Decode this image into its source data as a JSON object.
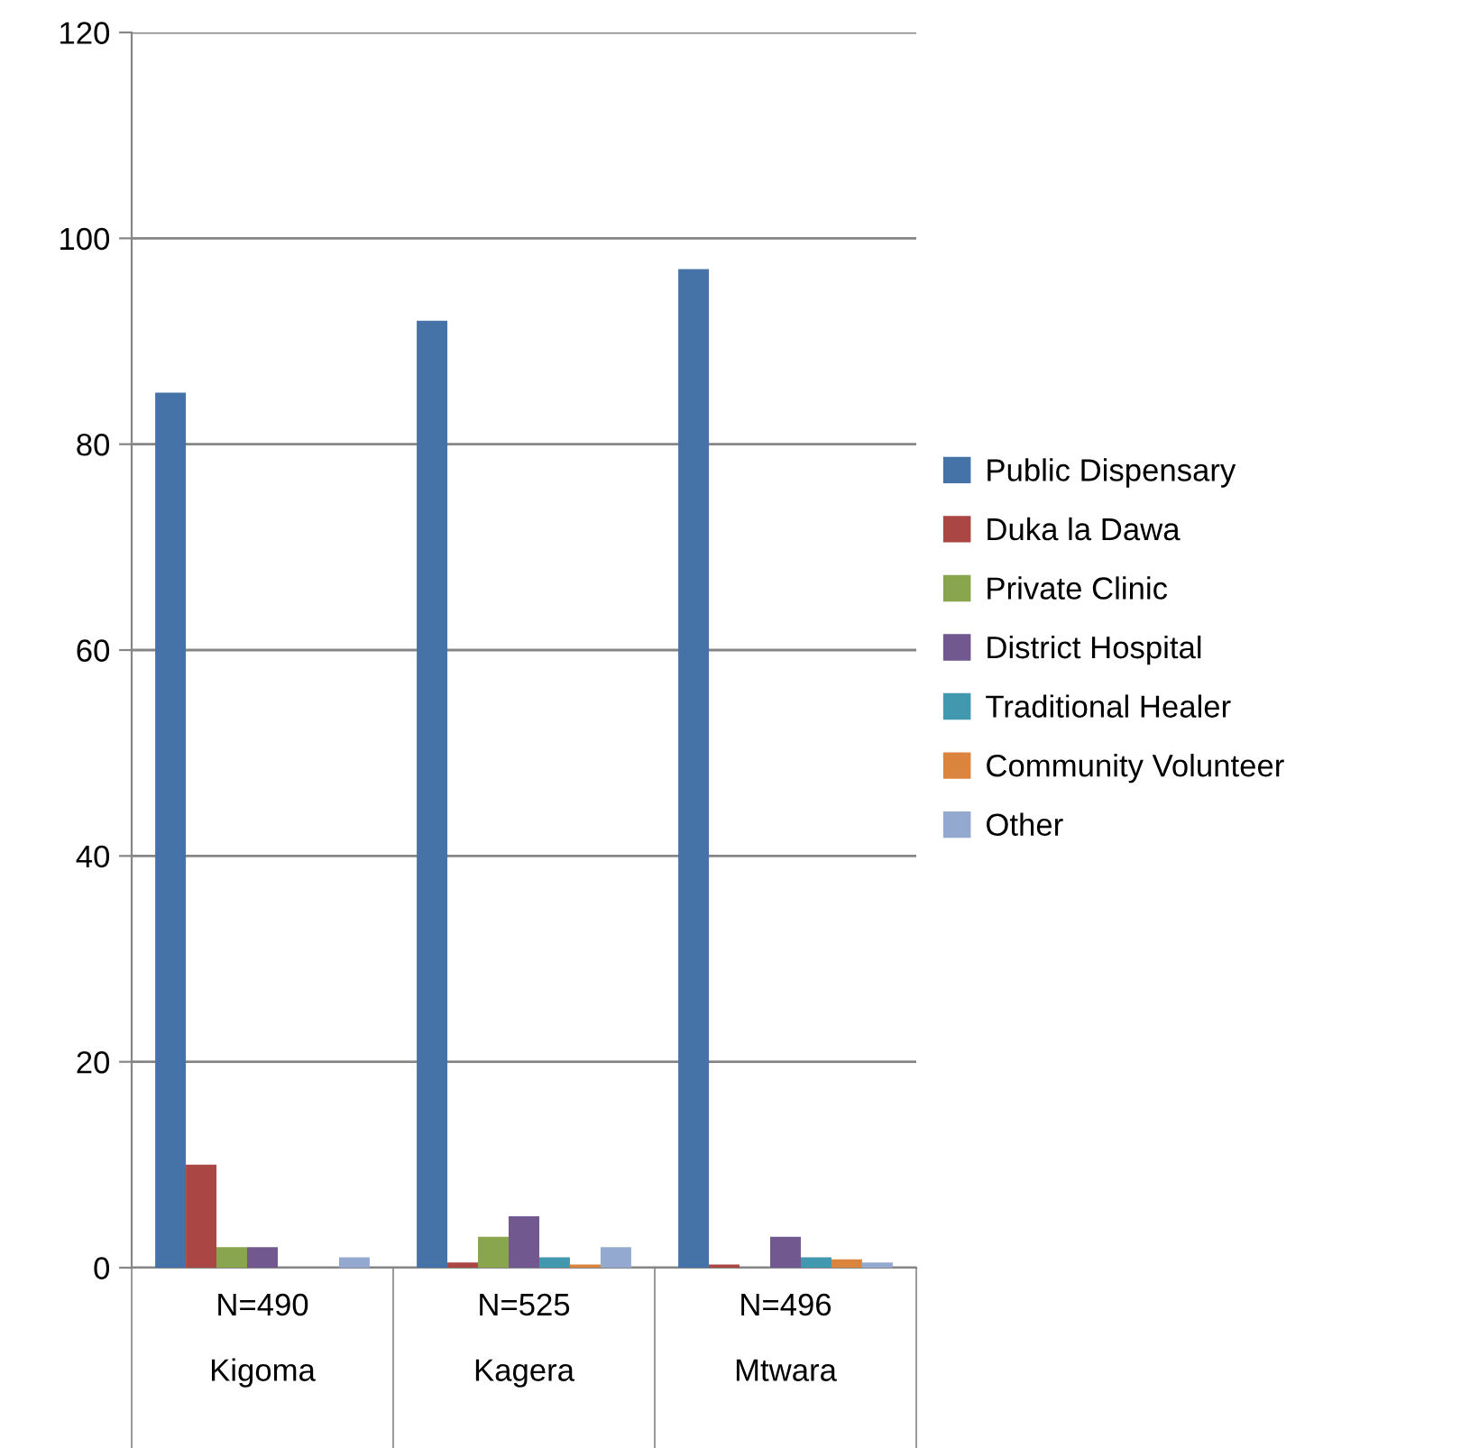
{
  "chart_data": {
    "type": "bar",
    "categories": [
      "N=490\nKigoma",
      "N=525\nKagera",
      "N=496\nMtwara"
    ],
    "series": [
      {
        "name": "Public Dispensary",
        "color": "#4572a7",
        "values": [
          85,
          92,
          97
        ]
      },
      {
        "name": "Duka la Dawa",
        "color": "#aa4643",
        "values": [
          10,
          0.5,
          0.3
        ]
      },
      {
        "name": "Private Clinic",
        "color": "#89a54e",
        "values": [
          2,
          3,
          0
        ]
      },
      {
        "name": "District Hospital",
        "color": "#71588f",
        "values": [
          2,
          5,
          3
        ]
      },
      {
        "name": "Traditional Healer",
        "color": "#4198af",
        "values": [
          0,
          1,
          1
        ]
      },
      {
        "name": "Community Volunteer",
        "color": "#db843d",
        "values": [
          0,
          0.3,
          0.8
        ]
      },
      {
        "name": "Other",
        "color": "#93a9cf",
        "values": [
          1,
          2,
          0.5
        ]
      }
    ],
    "ylim": [
      0,
      120
    ],
    "yticks": [
      0,
      20,
      40,
      60,
      80,
      100,
      120
    ],
    "grid": "y",
    "legend": "right"
  }
}
